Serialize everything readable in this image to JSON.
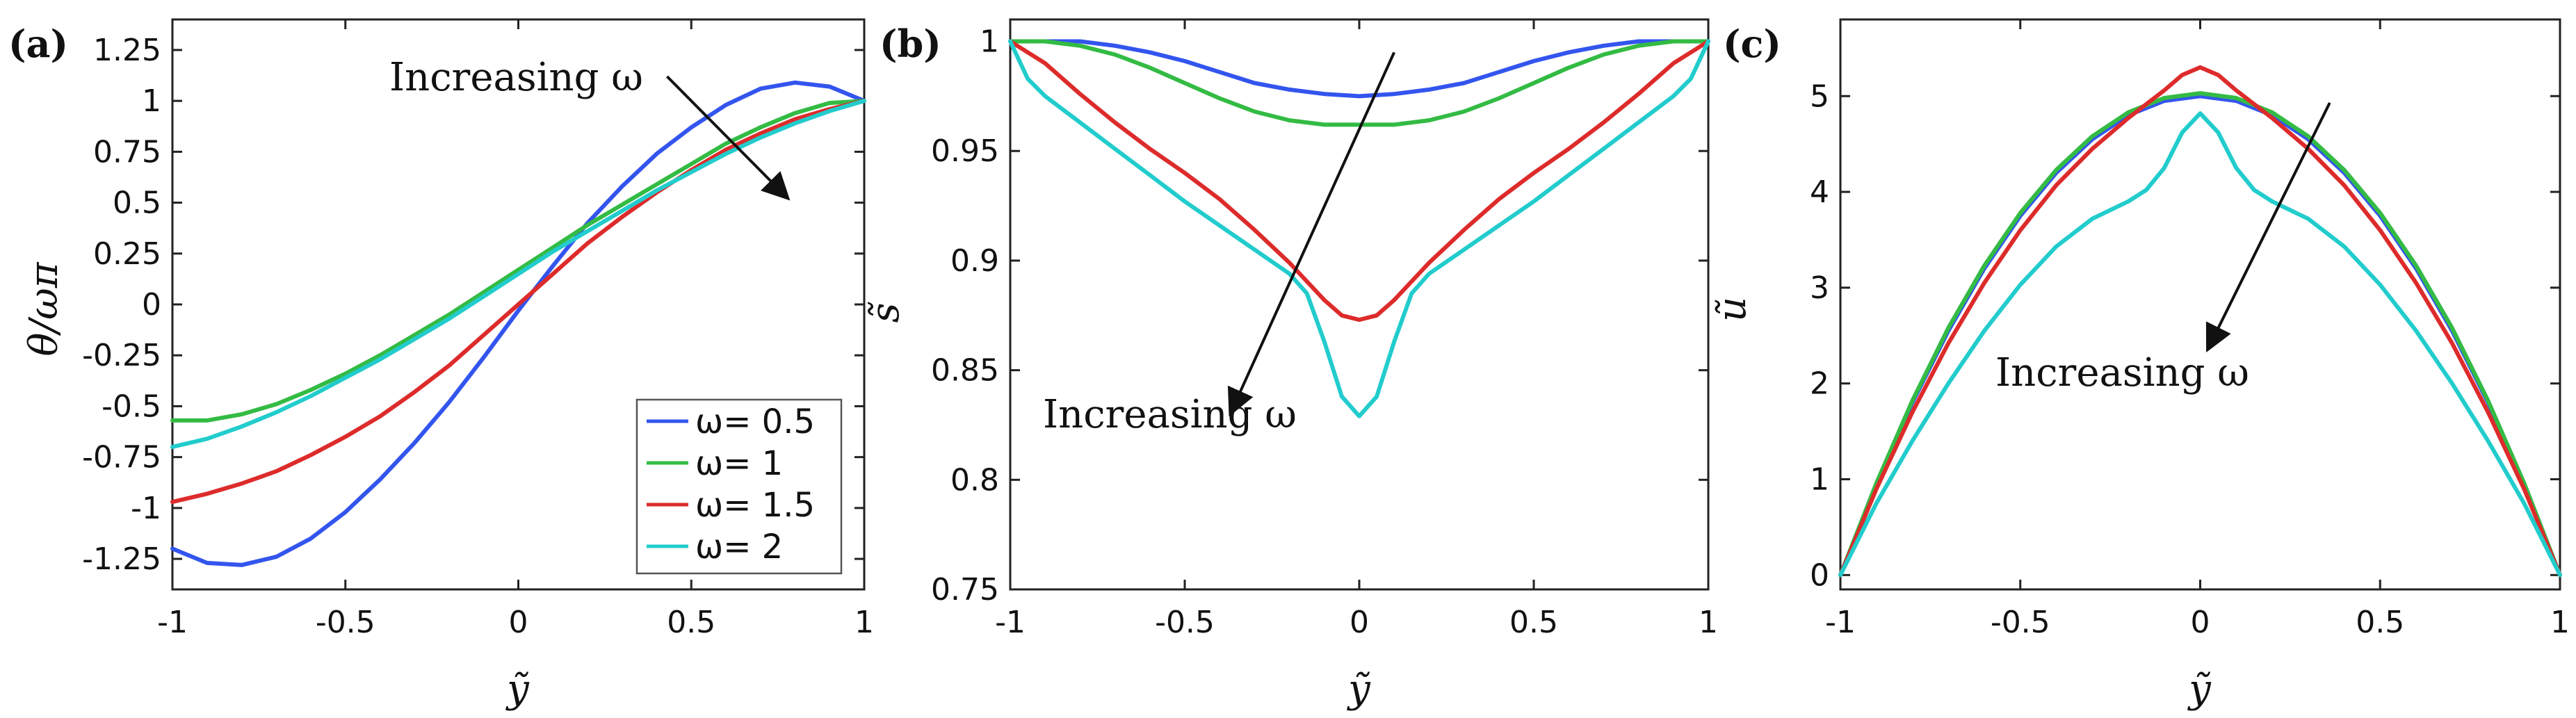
{
  "chart_data": [
    {
      "panel_label": "(a)",
      "type": "line",
      "xlabel": "ỹ",
      "ylabel": "θ/ωπ",
      "xlim": [
        -1,
        1
      ],
      "ylim": [
        -1.4,
        1.4
      ],
      "xticks": [
        -1,
        -0.5,
        0,
        0.5,
        1
      ],
      "xtick_labels": [
        "-1",
        "-0.5",
        "0",
        "0.5",
        "1"
      ],
      "yticks": [
        -1.25,
        -1,
        -0.75,
        -0.5,
        -0.25,
        0,
        0.25,
        0.5,
        0.75,
        1,
        1.25
      ],
      "ytick_labels": [
        "-1.25",
        "-1",
        "-0.75",
        "-0.5",
        "-0.25",
        "0",
        "0.25",
        "0.5",
        "0.75",
        "1",
        "1.25"
      ],
      "annotation": {
        "text": "Increasing ω",
        "from": [
          0.43,
          1.12
        ],
        "to": [
          0.78,
          0.52
        ]
      },
      "legend": {
        "placement": "bottom-right",
        "entries": [
          "ω= 0.5",
          "ω= 1",
          "ω= 1.5",
          "ω= 2"
        ]
      },
      "series": [
        {
          "name": "ω= 0.5",
          "color": "#3355ee",
          "x": [
            -1,
            -0.9,
            -0.8,
            -0.7,
            -0.6,
            -0.5,
            -0.4,
            -0.3,
            -0.2,
            -0.1,
            0,
            0.1,
            0.2,
            0.3,
            0.4,
            0.5,
            0.6,
            0.7,
            0.8,
            0.9,
            1
          ],
          "y": [
            -1.2,
            -1.27,
            -1.28,
            -1.24,
            -1.15,
            -1.02,
            -0.86,
            -0.68,
            -0.48,
            -0.26,
            -0.03,
            0.19,
            0.4,
            0.58,
            0.74,
            0.87,
            0.98,
            1.06,
            1.09,
            1.07,
            1.0
          ]
        },
        {
          "name": "ω= 1",
          "color": "#33bb44",
          "x": [
            -1,
            -0.9,
            -0.8,
            -0.7,
            -0.6,
            -0.5,
            -0.4,
            -0.3,
            -0.2,
            -0.1,
            0,
            0.1,
            0.2,
            0.3,
            0.4,
            0.5,
            0.6,
            0.7,
            0.8,
            0.9,
            1
          ],
          "y": [
            -0.57,
            -0.57,
            -0.54,
            -0.49,
            -0.42,
            -0.34,
            -0.25,
            -0.15,
            -0.05,
            0.06,
            0.17,
            0.28,
            0.39,
            0.49,
            0.59,
            0.69,
            0.79,
            0.87,
            0.94,
            0.99,
            1.0
          ]
        },
        {
          "name": "ω= 1.5",
          "color": "#dd2b2b",
          "x": [
            -1,
            -0.9,
            -0.8,
            -0.7,
            -0.6,
            -0.5,
            -0.4,
            -0.3,
            -0.2,
            -0.1,
            0,
            0.1,
            0.2,
            0.3,
            0.4,
            0.5,
            0.6,
            0.7,
            0.8,
            0.9,
            1
          ],
          "y": [
            -0.97,
            -0.93,
            -0.88,
            -0.82,
            -0.74,
            -0.65,
            -0.55,
            -0.43,
            -0.3,
            -0.15,
            0.0,
            0.15,
            0.3,
            0.43,
            0.55,
            0.66,
            0.76,
            0.84,
            0.91,
            0.96,
            1.0
          ]
        },
        {
          "name": "ω= 2",
          "color": "#22cccc",
          "x": [
            -1,
            -0.9,
            -0.8,
            -0.7,
            -0.6,
            -0.5,
            -0.4,
            -0.3,
            -0.2,
            -0.1,
            0,
            0.1,
            0.2,
            0.3,
            0.4,
            0.5,
            0.6,
            0.7,
            0.8,
            0.9,
            1
          ],
          "y": [
            -0.7,
            -0.66,
            -0.6,
            -0.53,
            -0.45,
            -0.36,
            -0.27,
            -0.17,
            -0.07,
            0.04,
            0.15,
            0.26,
            0.36,
            0.46,
            0.56,
            0.65,
            0.74,
            0.82,
            0.89,
            0.95,
            1.0
          ]
        }
      ]
    },
    {
      "panel_label": "(b)",
      "type": "line",
      "xlabel": "ỹ",
      "ylabel": "s̃",
      "xlim": [
        -1,
        1
      ],
      "ylim": [
        0.75,
        1.01
      ],
      "xticks": [
        -1,
        -0.5,
        0,
        0.5,
        1
      ],
      "xtick_labels": [
        "-1",
        "-0.5",
        "0",
        "0.5",
        "1"
      ],
      "yticks": [
        0.75,
        0.8,
        0.85,
        0.9,
        0.95,
        1
      ],
      "ytick_labels": [
        "0.75",
        "0.8",
        "0.85",
        "0.9",
        "0.95",
        "1"
      ],
      "annotation": {
        "text": "Increasing ω",
        "from": [
          0.1,
          0.995
        ],
        "to": [
          -0.37,
          0.83
        ]
      },
      "series": [
        {
          "name": "ω= 0.5",
          "color": "#3355ee",
          "x": [
            -1,
            -0.9,
            -0.8,
            -0.7,
            -0.6,
            -0.5,
            -0.4,
            -0.3,
            -0.2,
            -0.1,
            0,
            0.1,
            0.2,
            0.3,
            0.4,
            0.5,
            0.6,
            0.7,
            0.8,
            0.9,
            1
          ],
          "y": [
            1.0,
            1.0,
            1.0,
            0.998,
            0.995,
            0.991,
            0.986,
            0.981,
            0.978,
            0.976,
            0.975,
            0.976,
            0.978,
            0.981,
            0.986,
            0.991,
            0.995,
            0.998,
            1.0,
            1.0,
            1.0
          ]
        },
        {
          "name": "ω= 1",
          "color": "#33bb44",
          "x": [
            -1,
            -0.9,
            -0.8,
            -0.7,
            -0.6,
            -0.5,
            -0.4,
            -0.3,
            -0.2,
            -0.1,
            0,
            0.1,
            0.2,
            0.3,
            0.4,
            0.5,
            0.6,
            0.7,
            0.8,
            0.9,
            1
          ],
          "y": [
            1.0,
            1.0,
            0.998,
            0.994,
            0.988,
            0.981,
            0.974,
            0.968,
            0.964,
            0.962,
            0.962,
            0.962,
            0.964,
            0.968,
            0.974,
            0.981,
            0.988,
            0.994,
            0.998,
            1.0,
            1.0
          ]
        },
        {
          "name": "ω= 1.5",
          "color": "#dd2b2b",
          "x": [
            -1,
            -0.9,
            -0.8,
            -0.7,
            -0.6,
            -0.5,
            -0.4,
            -0.3,
            -0.2,
            -0.1,
            -0.05,
            0,
            0.05,
            0.1,
            0.2,
            0.3,
            0.4,
            0.5,
            0.6,
            0.7,
            0.8,
            0.9,
            1
          ],
          "y": [
            1.0,
            0.99,
            0.976,
            0.963,
            0.951,
            0.94,
            0.928,
            0.914,
            0.899,
            0.882,
            0.875,
            0.873,
            0.875,
            0.882,
            0.899,
            0.914,
            0.928,
            0.94,
            0.951,
            0.963,
            0.976,
            0.99,
            1.0
          ]
        },
        {
          "name": "ω= 2",
          "color": "#22cccc",
          "x": [
            -1,
            -0.95,
            -0.9,
            -0.8,
            -0.7,
            -0.6,
            -0.5,
            -0.4,
            -0.3,
            -0.2,
            -0.15,
            -0.1,
            -0.05,
            0,
            0.05,
            0.1,
            0.15,
            0.2,
            0.3,
            0.4,
            0.5,
            0.6,
            0.7,
            0.8,
            0.9,
            0.95,
            1
          ],
          "y": [
            1.0,
            0.983,
            0.975,
            0.963,
            0.951,
            0.939,
            0.927,
            0.916,
            0.905,
            0.894,
            0.885,
            0.863,
            0.838,
            0.829,
            0.838,
            0.863,
            0.885,
            0.894,
            0.905,
            0.916,
            0.927,
            0.939,
            0.951,
            0.963,
            0.975,
            0.983,
            1.0
          ]
        }
      ]
    },
    {
      "panel_label": "(c)",
      "type": "line",
      "xlabel": "ỹ",
      "ylabel": "ũ",
      "xlim": [
        -1,
        1
      ],
      "ylim": [
        -0.15,
        5.8
      ],
      "xticks": [
        -1,
        -0.5,
        0,
        0.5,
        1
      ],
      "xtick_labels": [
        "-1",
        "-0.5",
        "0",
        "0.5",
        "1"
      ],
      "yticks": [
        0,
        1,
        2,
        3,
        4,
        5
      ],
      "ytick_labels": [
        "0",
        "1",
        "2",
        "3",
        "4",
        "5"
      ],
      "annotation": {
        "text": "Increasing ω",
        "from": [
          0.36,
          4.93
        ],
        "to": [
          0.02,
          2.35
        ]
      },
      "series": [
        {
          "name": "ω= 0.5",
          "color": "#3355ee",
          "x": [
            -1,
            -0.9,
            -0.8,
            -0.7,
            -0.6,
            -0.5,
            -0.4,
            -0.3,
            -0.2,
            -0.1,
            0,
            0.1,
            0.2,
            0.3,
            0.4,
            0.5,
            0.6,
            0.7,
            0.8,
            0.9,
            1
          ],
          "y": [
            0.0,
            0.95,
            1.8,
            2.55,
            3.2,
            3.75,
            4.2,
            4.55,
            4.8,
            4.95,
            5.0,
            4.95,
            4.8,
            4.55,
            4.2,
            3.75,
            3.2,
            2.55,
            1.8,
            0.95,
            0.0
          ]
        },
        {
          "name": "ω= 1",
          "color": "#33bb44",
          "x": [
            -1,
            -0.9,
            -0.8,
            -0.7,
            -0.6,
            -0.5,
            -0.4,
            -0.3,
            -0.2,
            -0.1,
            0,
            0.1,
            0.2,
            0.3,
            0.4,
            0.5,
            0.6,
            0.7,
            0.8,
            0.9,
            1
          ],
          "y": [
            0.0,
            0.96,
            1.82,
            2.58,
            3.23,
            3.78,
            4.23,
            4.58,
            4.83,
            4.98,
            5.03,
            4.98,
            4.83,
            4.58,
            4.23,
            3.78,
            3.23,
            2.58,
            1.82,
            0.96,
            0.0
          ]
        },
        {
          "name": "ω= 1.5",
          "color": "#dd2b2b",
          "x": [
            -1,
            -0.9,
            -0.8,
            -0.7,
            -0.6,
            -0.5,
            -0.4,
            -0.3,
            -0.2,
            -0.1,
            -0.05,
            0,
            0.05,
            0.1,
            0.2,
            0.3,
            0.4,
            0.5,
            0.6,
            0.7,
            0.8,
            0.9,
            1
          ],
          "y": [
            0.0,
            0.9,
            1.7,
            2.42,
            3.05,
            3.6,
            4.07,
            4.45,
            4.77,
            5.06,
            5.22,
            5.3,
            5.22,
            5.06,
            4.77,
            4.45,
            4.07,
            3.6,
            3.05,
            2.42,
            1.7,
            0.9,
            0.0
          ]
        },
        {
          "name": "ω= 2",
          "color": "#22cccc",
          "x": [
            -1,
            -0.9,
            -0.8,
            -0.7,
            -0.6,
            -0.5,
            -0.4,
            -0.3,
            -0.2,
            -0.15,
            -0.1,
            -0.05,
            0,
            0.05,
            0.1,
            0.15,
            0.2,
            0.3,
            0.4,
            0.5,
            0.6,
            0.7,
            0.8,
            0.9,
            1
          ],
          "y": [
            0.0,
            0.75,
            1.4,
            2.0,
            2.55,
            3.03,
            3.43,
            3.72,
            3.9,
            4.02,
            4.25,
            4.62,
            4.82,
            4.62,
            4.25,
            4.02,
            3.9,
            3.72,
            3.43,
            3.03,
            2.55,
            2.0,
            1.4,
            0.75,
            0.0
          ]
        }
      ]
    }
  ]
}
